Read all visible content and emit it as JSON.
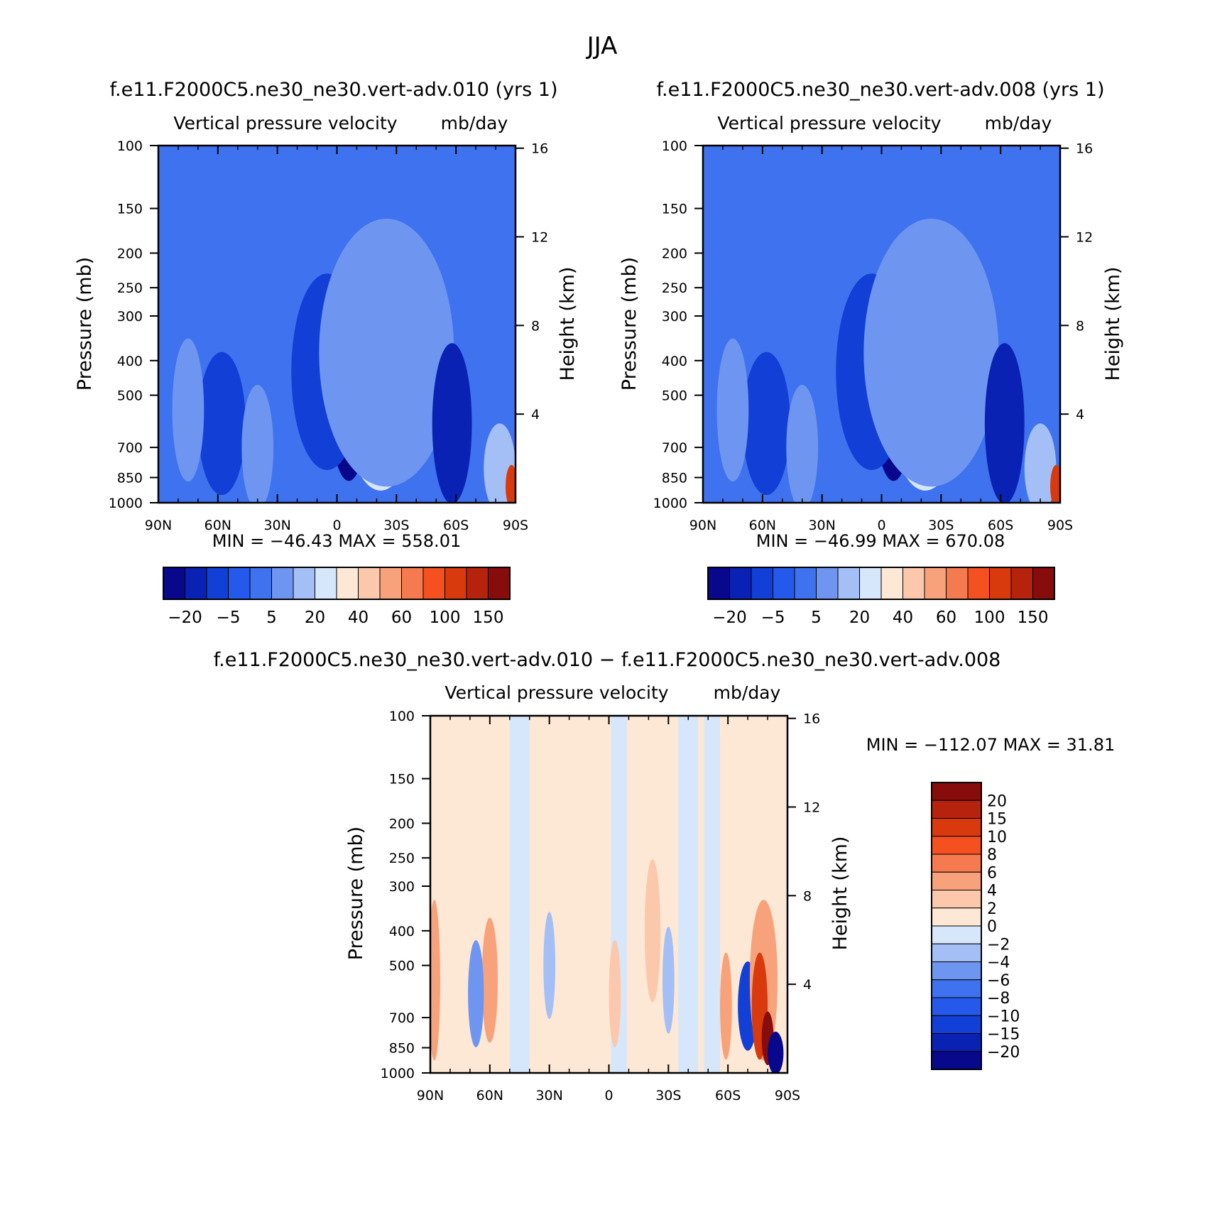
{
  "figure_title": "JJA",
  "colors": {
    "abs_palette": [
      "#08088c",
      "#0a22b4",
      "#1240d6",
      "#2459ec",
      "#3f72ee",
      "#6e96f1",
      "#a3bff6",
      "#d6e6fb",
      "#fde8d6",
      "#fbc8ab",
      "#f8a27c",
      "#f67a4f",
      "#f5501f",
      "#d83a0e",
      "#b5230d",
      "#870c0c"
    ],
    "diff_palette": [
      "#08088c",
      "#0a22b4",
      "#1240d6",
      "#2459ec",
      "#3f72ee",
      "#6e96f1",
      "#a3bff6",
      "#d6e6fb",
      "#fde8d6",
      "#fbc8ab",
      "#f8a27c",
      "#f67a4f",
      "#f5501f",
      "#d83a0e",
      "#b5230d",
      "#870c0c"
    ]
  },
  "chart_data": [
    {
      "id": "panel-1",
      "type": "heatmap",
      "case_title": "f.e11.F2000C5.ne30_ne30.vert-adv.010 (yrs 1)",
      "subtitle_left": "Vertical pressure velocity",
      "subtitle_right": "mb/day",
      "xlabel": "",
      "ylabel": "Pressure (mb)",
      "y2label": "Height (km)",
      "x_ticks": [
        "90N",
        "60N",
        "30N",
        "0",
        "30S",
        "60S",
        "90S"
      ],
      "x_range": [
        90,
        -90
      ],
      "y_ticks": [
        100,
        150,
        200,
        250,
        300,
        400,
        500,
        700,
        850,
        1000
      ],
      "y_range": [
        100,
        1000
      ],
      "y_scale": "log",
      "y2_ticks": [
        16,
        12,
        8,
        4
      ],
      "stats": "MIN =  −46.43   MAX =  558.01",
      "colorbar_labels": [
        "−20",
        "−5",
        "5",
        "20",
        "40",
        "60",
        "100",
        "150"
      ],
      "field_blobs": [
        {
          "lat": -6,
          "p": 500,
          "w": 10,
          "h": 0.48,
          "level": 0
        },
        {
          "lat": 5,
          "p": 430,
          "w": 18,
          "h": 0.55,
          "level": 2
        },
        {
          "lat": -22,
          "p": 520,
          "w": 18,
          "h": 0.5,
          "level": 7
        },
        {
          "lat": -25,
          "p": 380,
          "w": 34,
          "h": 0.75,
          "level": 5
        },
        {
          "lat": -58,
          "p": 600,
          "w": 10,
          "h": 0.45,
          "level": 1
        },
        {
          "lat": 58,
          "p": 600,
          "w": 12,
          "h": 0.4,
          "level": 2
        },
        {
          "lat": 75,
          "p": 550,
          "w": 8,
          "h": 0.4,
          "level": 5
        },
        {
          "lat": 40,
          "p": 700,
          "w": 8,
          "h": 0.35,
          "level": 5
        },
        {
          "lat": -82,
          "p": 800,
          "w": 8,
          "h": 0.25,
          "level": 6
        },
        {
          "lat": -88,
          "p": 900,
          "w": 3,
          "h": 0.12,
          "level": 13
        }
      ]
    },
    {
      "id": "panel-2",
      "type": "heatmap",
      "case_title": "f.e11.F2000C5.ne30_ne30.vert-adv.008 (yrs 1)",
      "subtitle_left": "Vertical pressure velocity",
      "subtitle_right": "mb/day",
      "xlabel": "",
      "ylabel": "Pressure (mb)",
      "y2label": "Height (km)",
      "x_ticks": [
        "90N",
        "60N",
        "30N",
        "0",
        "30S",
        "60S",
        "90S"
      ],
      "x_range": [
        90,
        -90
      ],
      "y_ticks": [
        100,
        150,
        200,
        250,
        300,
        400,
        500,
        700,
        850,
        1000
      ],
      "y_range": [
        100,
        1000
      ],
      "y_scale": "log",
      "y2_ticks": [
        16,
        12,
        8,
        4
      ],
      "stats": "MIN =  −46.99   MAX =  670.08",
      "colorbar_labels": [
        "−20",
        "−5",
        "5",
        "20",
        "40",
        "60",
        "100",
        "150"
      ],
      "field_blobs": [
        {
          "lat": -6,
          "p": 500,
          "w": 10,
          "h": 0.48,
          "level": 0
        },
        {
          "lat": 5,
          "p": 430,
          "w": 18,
          "h": 0.55,
          "level": 2
        },
        {
          "lat": -22,
          "p": 520,
          "w": 18,
          "h": 0.5,
          "level": 7
        },
        {
          "lat": -25,
          "p": 380,
          "w": 34,
          "h": 0.75,
          "level": 5
        },
        {
          "lat": -62,
          "p": 600,
          "w": 10,
          "h": 0.45,
          "level": 1
        },
        {
          "lat": 58,
          "p": 600,
          "w": 12,
          "h": 0.4,
          "level": 2
        },
        {
          "lat": 75,
          "p": 550,
          "w": 8,
          "h": 0.4,
          "level": 5
        },
        {
          "lat": 40,
          "p": 700,
          "w": 8,
          "h": 0.35,
          "level": 5
        },
        {
          "lat": -80,
          "p": 800,
          "w": 8,
          "h": 0.25,
          "level": 6
        },
        {
          "lat": -88,
          "p": 900,
          "w": 3,
          "h": 0.12,
          "level": 13
        }
      ]
    },
    {
      "id": "panel-diff",
      "type": "heatmap",
      "case_title": "f.e11.F2000C5.ne30_ne30.vert-adv.010 − f.e11.F2000C5.ne30_ne30.vert-adv.008",
      "subtitle_left": "Vertical pressure velocity",
      "subtitle_right": "mb/day",
      "xlabel": "",
      "ylabel": "Pressure (mb)",
      "y2label": "Height (km)",
      "x_ticks": [
        "90N",
        "60N",
        "30N",
        "0",
        "30S",
        "60S",
        "90S"
      ],
      "x_range": [
        90,
        -90
      ],
      "y_ticks": [
        100,
        150,
        200,
        250,
        300,
        400,
        500,
        700,
        850,
        1000
      ],
      "y_range": [
        100,
        1000
      ],
      "y_scale": "log",
      "y2_ticks": [
        16,
        12,
        8,
        4
      ],
      "stats": "MIN =  −112.07   MAX =   31.81",
      "colorbar_labels": [
        "20",
        "15",
        "10",
        "8",
        "6",
        "4",
        "2",
        "0",
        "−2",
        "−4",
        "−6",
        "−8",
        "−10",
        "−15",
        "−20"
      ],
      "field_bands": [
        {
          "lat": 80,
          "w": 14,
          "level": 8
        },
        {
          "lat": 62,
          "w": 8,
          "level": 8
        },
        {
          "lat": 45,
          "w": 10,
          "level": 7
        },
        {
          "lat": 20,
          "w": 10,
          "level": 8
        },
        {
          "lat": -5,
          "w": 8,
          "level": 7
        },
        {
          "lat": -15,
          "w": 10,
          "level": 8
        },
        {
          "lat": -40,
          "w": 10,
          "level": 7
        },
        {
          "lat": -52,
          "w": 8,
          "level": 7
        },
        {
          "lat": -80,
          "w": 12,
          "level": 8
        }
      ],
      "field_blobs": [
        {
          "lat": 88,
          "p": 550,
          "w": 3,
          "h": 0.45,
          "level": 10
        },
        {
          "lat": 60,
          "p": 550,
          "w": 4,
          "h": 0.35,
          "level": 10
        },
        {
          "lat": 67,
          "p": 600,
          "w": 4,
          "h": 0.3,
          "level": 5
        },
        {
          "lat": 30,
          "p": 500,
          "w": 3,
          "h": 0.3,
          "level": 6
        },
        {
          "lat": -3,
          "p": 600,
          "w": 3,
          "h": 0.3,
          "level": 9
        },
        {
          "lat": -22,
          "p": 400,
          "w": 4,
          "h": 0.4,
          "level": 9
        },
        {
          "lat": -30,
          "p": 550,
          "w": 3,
          "h": 0.3,
          "level": 6
        },
        {
          "lat": -59,
          "p": 650,
          "w": 3,
          "h": 0.3,
          "level": 10
        },
        {
          "lat": -70,
          "p": 650,
          "w": 5,
          "h": 0.25,
          "level": 2
        },
        {
          "lat": -78,
          "p": 550,
          "w": 7,
          "h": 0.45,
          "level": 10
        },
        {
          "lat": -76,
          "p": 650,
          "w": 4,
          "h": 0.3,
          "level": 13
        },
        {
          "lat": -80,
          "p": 800,
          "w": 3,
          "h": 0.15,
          "level": 15
        },
        {
          "lat": -84,
          "p": 880,
          "w": 4,
          "h": 0.12,
          "level": 0
        }
      ]
    }
  ]
}
